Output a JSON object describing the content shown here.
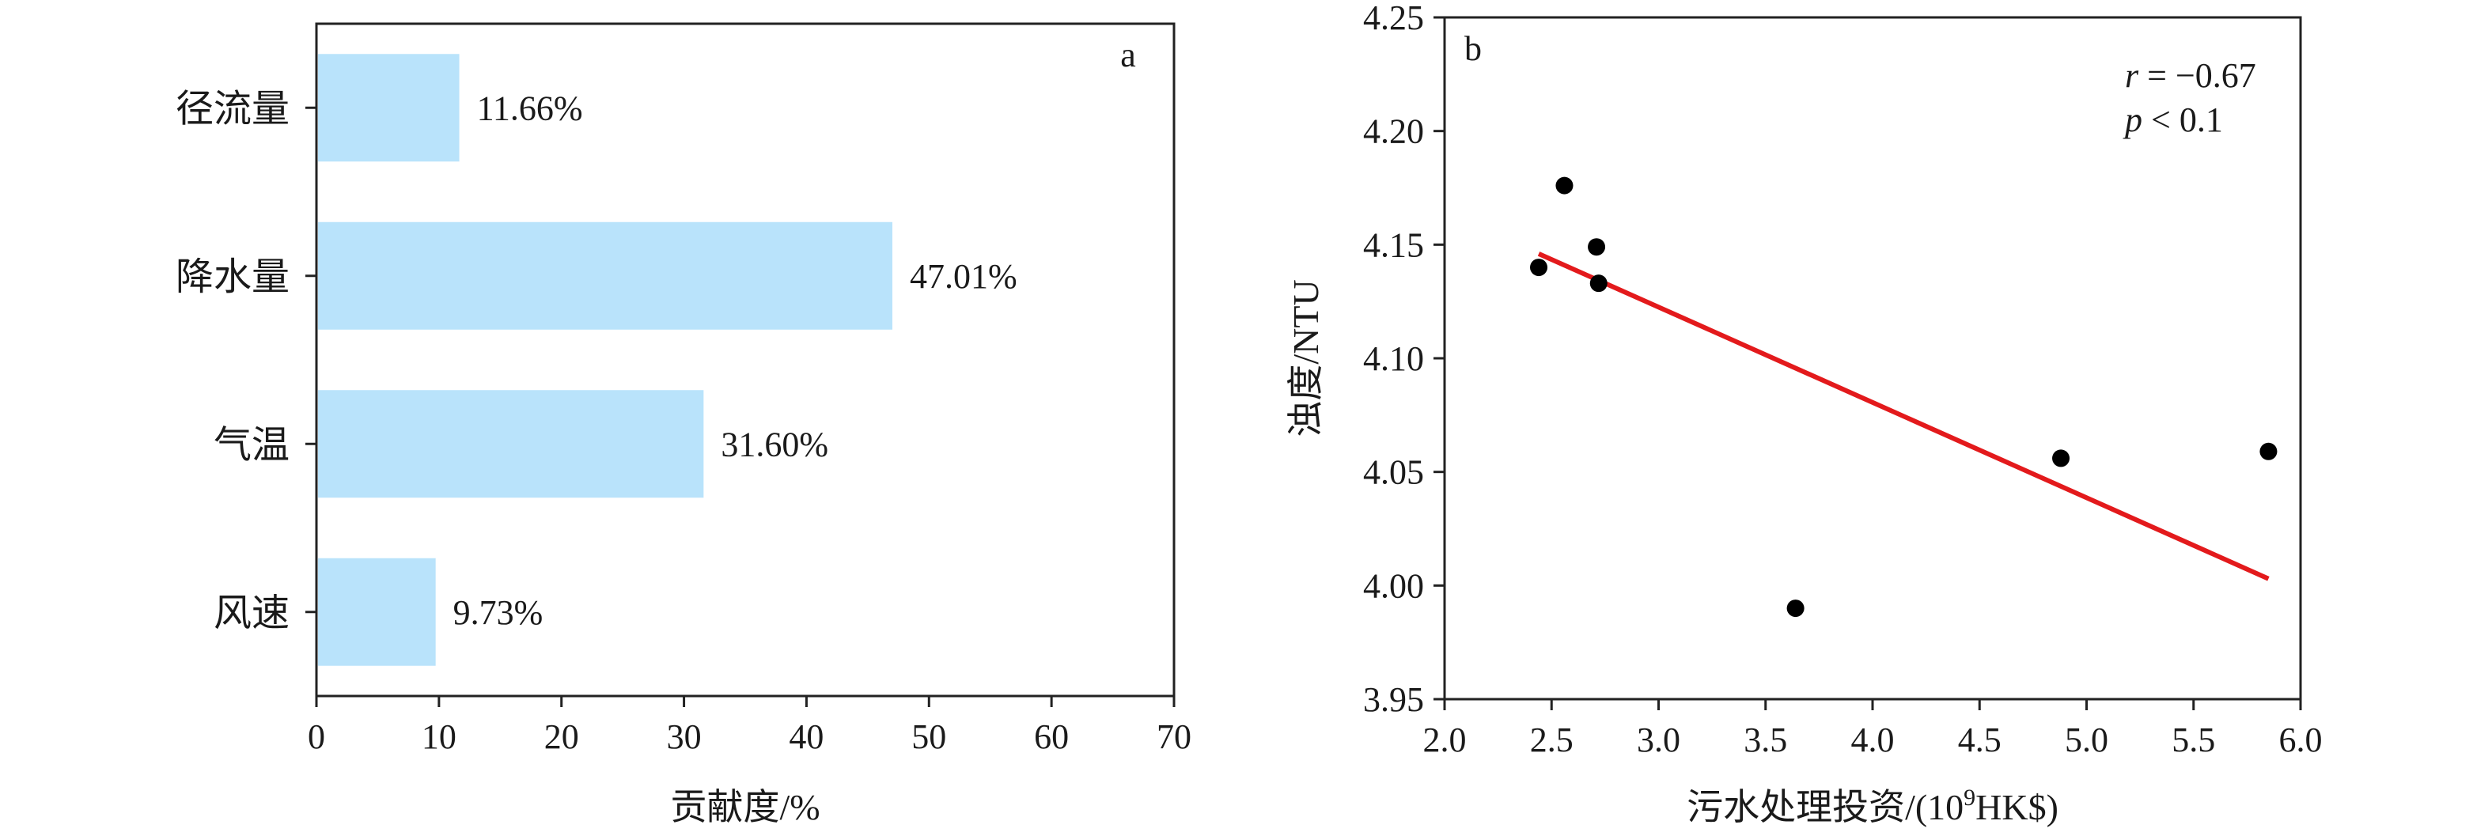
{
  "chart_data": [
    {
      "type": "bar",
      "orientation": "horizontal",
      "panel_label": "a",
      "categories": [
        "径流量",
        "降水量",
        "气温",
        "风速"
      ],
      "values": [
        11.66,
        47.01,
        31.6,
        9.73
      ],
      "value_labels": [
        "11.66%",
        "47.01%",
        "31.60%",
        "9.73%"
      ],
      "xlabel": "贡献度/%",
      "ylabel": "",
      "xlim": [
        0,
        70
      ],
      "xticks": [
        0,
        10,
        20,
        30,
        40,
        50,
        60,
        70
      ],
      "bar_color": "#b9e3fb",
      "grid": false
    },
    {
      "type": "scatter",
      "panel_label": "b",
      "points": [
        {
          "x": 2.44,
          "y": 4.14
        },
        {
          "x": 2.56,
          "y": 4.176
        },
        {
          "x": 2.71,
          "y": 4.149
        },
        {
          "x": 2.72,
          "y": 4.133
        },
        {
          "x": 3.64,
          "y": 3.99
        },
        {
          "x": 4.88,
          "y": 4.056
        },
        {
          "x": 5.85,
          "y": 4.059
        }
      ],
      "fit_line": {
        "x": [
          2.44,
          5.85
        ],
        "y": [
          4.146,
          4.003
        ],
        "color": "#e31a1c"
      },
      "annotation": {
        "r_symbol": "r",
        "r_value": " = −0.67",
        "p_symbol": "p",
        "p_value": " < 0.1"
      },
      "xlabel_main": "污水处理投资/(10",
      "xlabel_sup": "9",
      "xlabel_tail": "HK$)",
      "ylabel": "浊度/NTU",
      "xlim": [
        2.0,
        6.0
      ],
      "ylim": [
        3.95,
        4.25
      ],
      "xticks": [
        "2.0",
        "2.5",
        "3.0",
        "3.5",
        "4.0",
        "4.5",
        "5.0",
        "5.5",
        "6.0"
      ],
      "yticks": [
        "3.95",
        "4.00",
        "4.05",
        "4.10",
        "4.15",
        "4.20",
        "4.25"
      ],
      "point_color": "#000000",
      "grid": false
    }
  ]
}
